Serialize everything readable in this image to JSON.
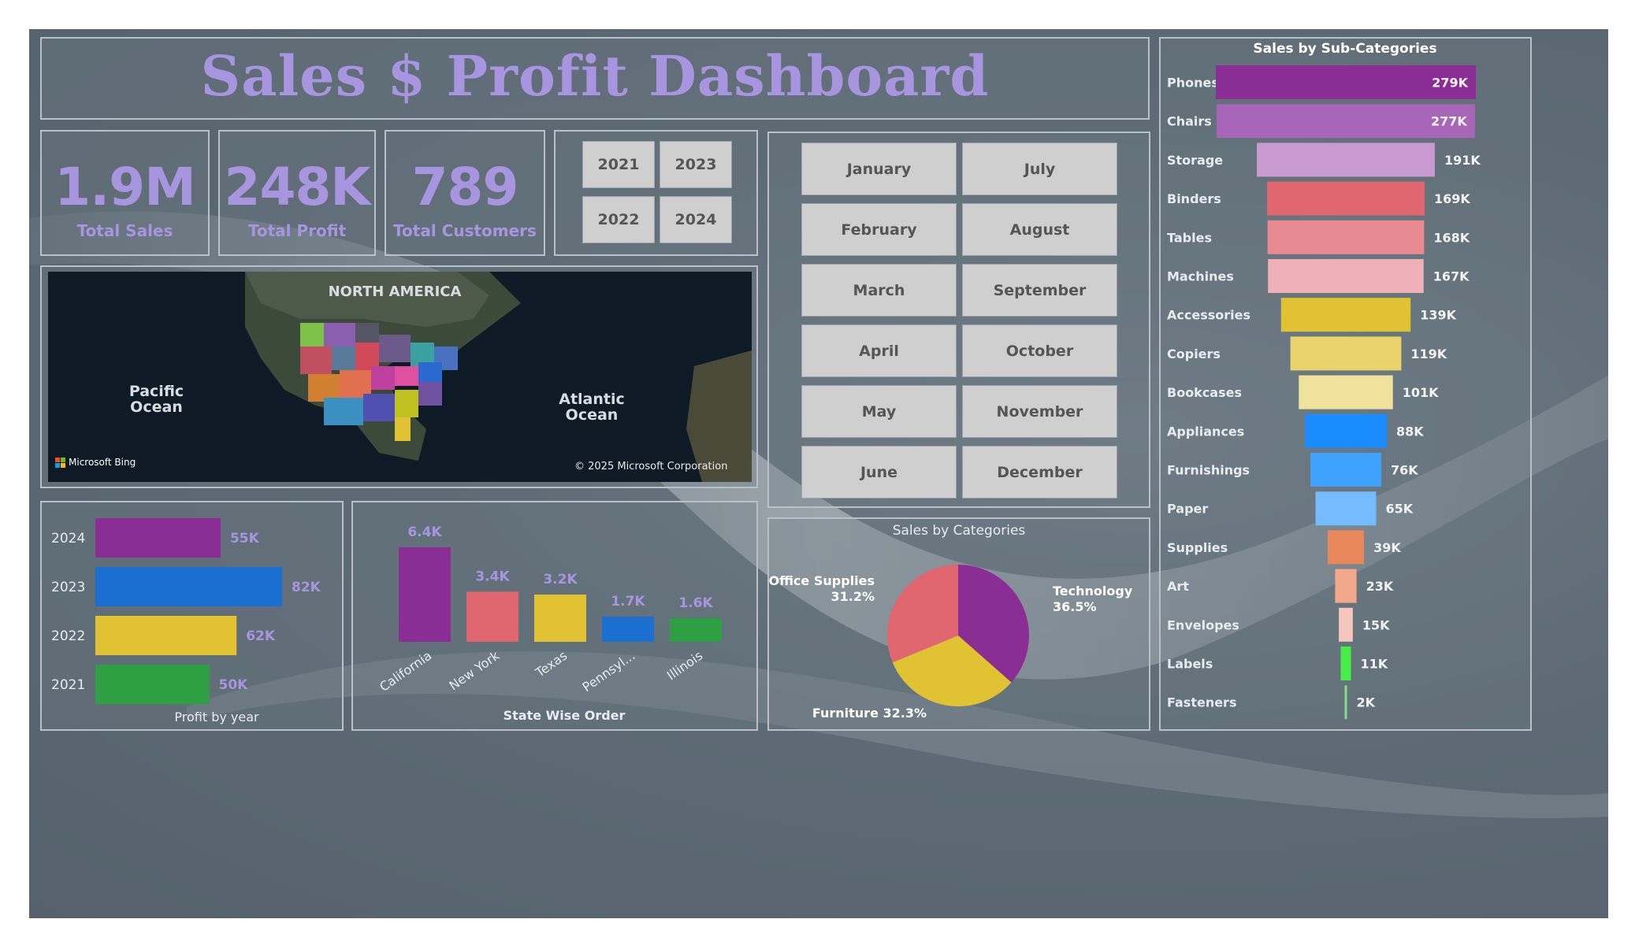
{
  "title": "Sales $ Profit Dashboard",
  "kpis": [
    {
      "value": "1.9M",
      "label": "Total Sales"
    },
    {
      "value": "248K",
      "label": "Total Profit"
    },
    {
      "value": "789",
      "label": "Total Customers"
    }
  ],
  "year_slicer": [
    "2021",
    "2023",
    "2022",
    "2024"
  ],
  "month_slicer": [
    "January",
    "July",
    "February",
    "August",
    "March",
    "September",
    "April",
    "October",
    "May",
    "November",
    "June",
    "December"
  ],
  "map": {
    "labels": {
      "north_america": "NORTH AMERICA",
      "pacific": "Pacific Ocean",
      "atlantic": "Atlantic Ocean"
    },
    "brand": "Microsoft Bing",
    "copyright": "© 2025 Microsoft Corporation"
  },
  "colors": {
    "purple": "#8a2e96",
    "blue": "#1a6fd0",
    "yellow": "#e0c233",
    "green": "#2ea043",
    "coral": "#e06670",
    "accent": "#a895e0"
  },
  "chart_data": [
    {
      "type": "bar",
      "orientation": "horizontal",
      "title": "Profit by year",
      "categories": [
        "2024",
        "2023",
        "2022",
        "2021"
      ],
      "values": [
        55,
        82,
        62,
        50
      ],
      "value_labels": [
        "55K",
        "82K",
        "62K",
        "50K"
      ],
      "colors": [
        "#8a2e96",
        "#1a6fd0",
        "#e0c233",
        "#2ea043"
      ],
      "xlim": [
        0,
        82
      ]
    },
    {
      "type": "bar",
      "orientation": "vertical",
      "title": "State Wise Order",
      "categories": [
        "California",
        "New York",
        "Texas",
        "Pennsyl...",
        "Illinois"
      ],
      "values": [
        6.4,
        3.4,
        3.2,
        1.7,
        1.6
      ],
      "value_labels": [
        "6.4K",
        "3.4K",
        "3.2K",
        "1.7K",
        "1.6K"
      ],
      "colors": [
        "#8a2e96",
        "#e06670",
        "#e0c233",
        "#1a6fd0",
        "#2ea043"
      ],
      "ylim": [
        0,
        6.4
      ]
    },
    {
      "type": "pie",
      "title": "Sales by Categories",
      "slices": [
        {
          "name": "Technology",
          "percent": 36.5,
          "label": "Technology 36.5%",
          "color": "#8a2e96"
        },
        {
          "name": "Furniture",
          "percent": 32.3,
          "label": "Furniture 32.3%",
          "color": "#e0c233"
        },
        {
          "name": "Office Supplies",
          "percent": 31.2,
          "label": "Office Supplies 31.2%",
          "color": "#e06670"
        }
      ]
    },
    {
      "type": "bar",
      "orientation": "funnel",
      "title": "Sales by Sub-Categories",
      "categories": [
        "Phones",
        "Chairs",
        "Storage",
        "Binders",
        "Tables",
        "Machines",
        "Accessories",
        "Copiers",
        "Bookcases",
        "Appliances",
        "Furnishings",
        "Paper",
        "Supplies",
        "Art",
        "Envelopes",
        "Labels",
        "Fasteners"
      ],
      "values": [
        279,
        277,
        191,
        169,
        168,
        167,
        139,
        119,
        101,
        88,
        76,
        65,
        39,
        23,
        15,
        11,
        2
      ],
      "value_labels": [
        "279K",
        "277K",
        "191K",
        "169K",
        "168K",
        "167K",
        "139K",
        "119K",
        "101K",
        "88K",
        "76K",
        "65K",
        "39K",
        "23K",
        "15K",
        "11K",
        "2K"
      ],
      "colors": [
        "#8a2e96",
        "#a866b8",
        "#c89ad0",
        "#e06670",
        "#e88a92",
        "#efb0b8",
        "#e0c233",
        "#e8d46a",
        "#f0e29c",
        "#1a8cff",
        "#3fa2ff",
        "#74bbff",
        "#e8875a",
        "#f2a88a",
        "#f5c6bb",
        "#44ee44",
        "#88dd88"
      ],
      "xlim": [
        0,
        279
      ]
    }
  ]
}
